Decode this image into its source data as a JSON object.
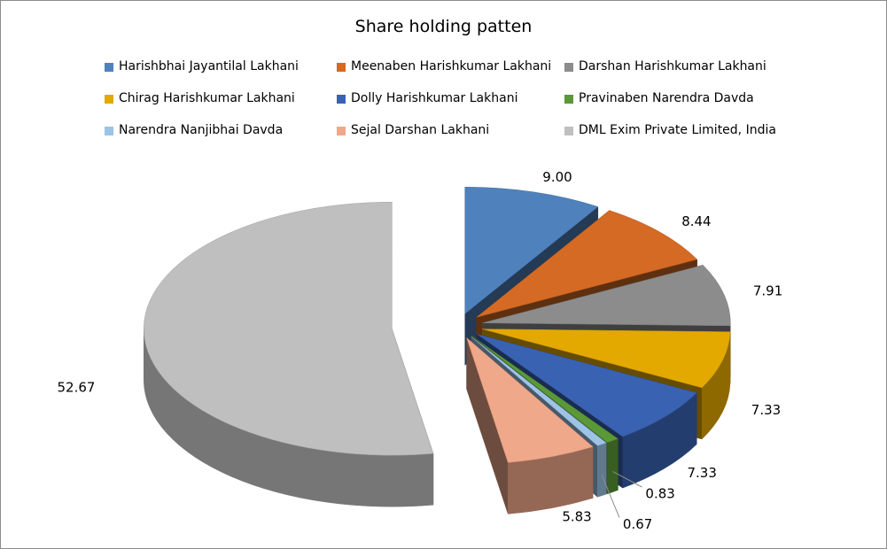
{
  "chart_data": {
    "type": "pie",
    "title": "Share holding patten",
    "legend_position": "top",
    "style": "3d-exploded",
    "slices": [
      {
        "label": "Harishbhai Jayantilal Lakhani",
        "value": 9.0,
        "value_label": "9.00",
        "color": "#4f81bd"
      },
      {
        "label": "Meenaben Harishkumar Lakhani",
        "value": 8.44,
        "value_label": "8.44",
        "color": "#d46a24"
      },
      {
        "label": "Darshan Harishkumar Lakhani",
        "value": 7.91,
        "value_label": "7.91",
        "color": "#8c8c8c"
      },
      {
        "label": "Chirag Harishkumar Lakhani",
        "value": 7.33,
        "value_label": "7.33",
        "color": "#e3a900"
      },
      {
        "label": "Dolly Harishkumar Lakhani",
        "value": 7.33,
        "value_label": "7.33",
        "color": "#3a62b3"
      },
      {
        "label": "Pravinaben Narendra Davda",
        "value": 0.83,
        "value_label": "0.83",
        "color": "#5b9838"
      },
      {
        "label": "Narendra Nanjibhai Davda",
        "value": 0.67,
        "value_label": "0.67",
        "color": "#9dc3e6"
      },
      {
        "label": "Sejal Darshan Lakhani",
        "value": 5.83,
        "value_label": "5.83",
        "color": "#f0a88a"
      },
      {
        "label": "DML Exim Private Limited, India",
        "value": 52.67,
        "value_label": "52.67",
        "color": "#bfbfbf"
      }
    ]
  }
}
